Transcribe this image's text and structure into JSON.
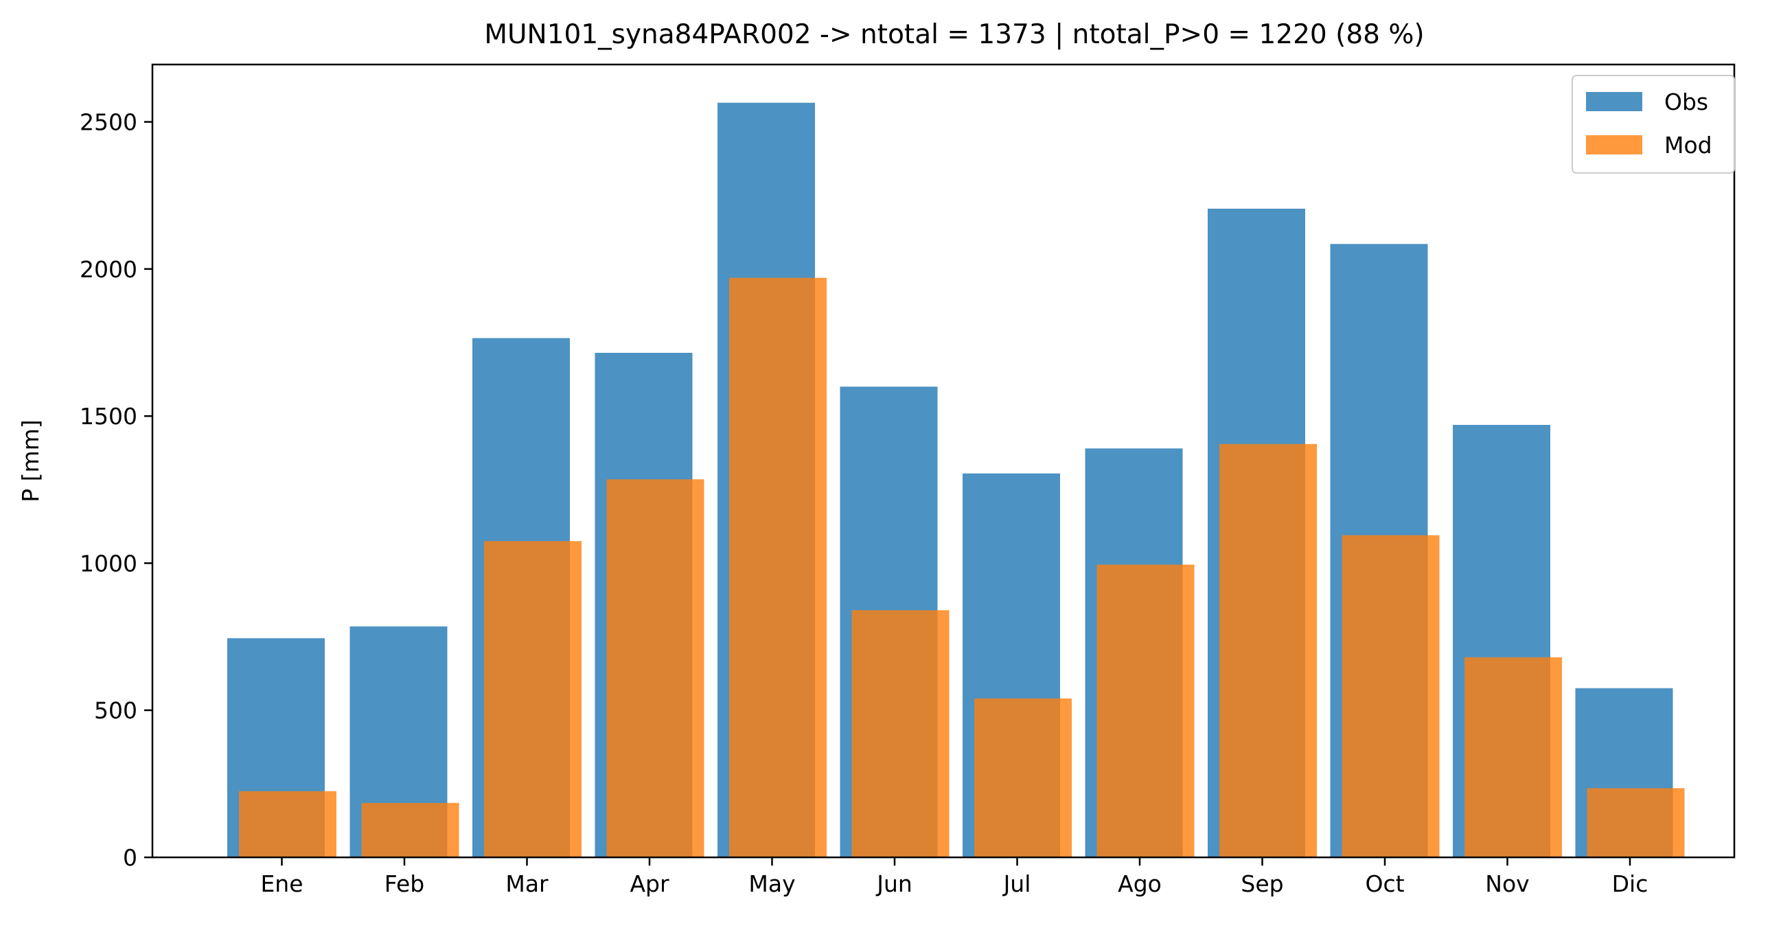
{
  "chart_data": {
    "type": "bar",
    "title": "MUN101_syna84PAR002 -> ntotal = 1373 | ntotal_P>0 = 1220 (88 %)",
    "xlabel": "",
    "ylabel": "P [mm]",
    "categories": [
      "Ene",
      "Feb",
      "Mar",
      "Apr",
      "May",
      "Jun",
      "Jul",
      "Ago",
      "Sep",
      "Oct",
      "Nov",
      "Dic"
    ],
    "series": [
      {
        "name": "Obs",
        "color": "#1f77b4",
        "opacity": 0.8,
        "values": [
          745,
          785,
          1765,
          1715,
          2565,
          1600,
          1305,
          1390,
          2205,
          2085,
          1470,
          575
        ]
      },
      {
        "name": "Mod",
        "color": "#ff7f0e",
        "opacity": 0.8,
        "values": [
          225,
          185,
          1075,
          1285,
          1970,
          840,
          540,
          995,
          1405,
          1095,
          680,
          235
        ]
      }
    ],
    "yticks": [
      0,
      500,
      1000,
      1500,
      2000,
      2500
    ],
    "ylim": [
      0,
      2695
    ],
    "grid": false,
    "legend": "top-right"
  }
}
